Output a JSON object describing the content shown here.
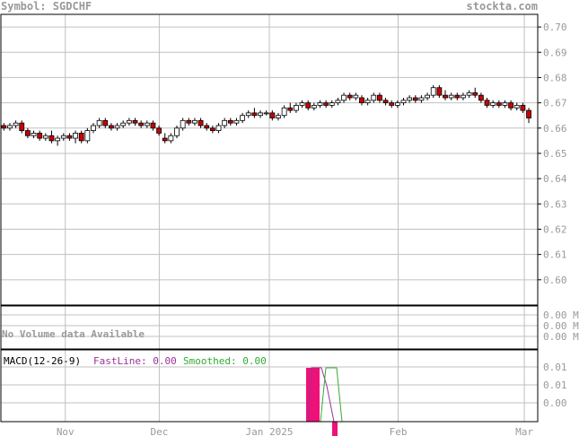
{
  "header": {
    "symbol_text": "Symbol: SGDCHF",
    "site": "stockta.com"
  },
  "colors": {
    "grid": "#c0c0c0",
    "axis": "#000000",
    "up": "#ffffff",
    "down": "#cc0000",
    "header_text": "#999999",
    "macd_bar": "#ee1177",
    "fast": "#993399",
    "smooth": "#33aa33",
    "tick_text": "#999999",
    "novol_text": "#999999"
  },
  "chart_data": [
    {
      "type": "candlestick",
      "name": "price",
      "ylim": [
        0.59,
        0.705
      ],
      "yticks": [
        "0.70",
        "0.69",
        "0.68",
        "0.67",
        "0.66",
        "0.65",
        "0.64",
        "0.63",
        "0.62",
        "0.61",
        "0.60"
      ],
      "ytick_values": [
        0.7,
        0.69,
        0.68,
        0.67,
        0.66,
        0.65,
        0.64,
        0.63,
        0.62,
        0.61,
        0.6
      ],
      "grid": true,
      "ohlc": [
        [
          0.661,
          0.662,
          0.659,
          0.66
        ],
        [
          0.66,
          0.662,
          0.659,
          0.661
        ],
        [
          0.661,
          0.663,
          0.66,
          0.662
        ],
        [
          0.662,
          0.663,
          0.658,
          0.659
        ],
        [
          0.659,
          0.66,
          0.656,
          0.657
        ],
        [
          0.657,
          0.659,
          0.656,
          0.658
        ],
        [
          0.658,
          0.659,
          0.655,
          0.656
        ],
        [
          0.656,
          0.658,
          0.655,
          0.657
        ],
        [
          0.657,
          0.659,
          0.654,
          0.655
        ],
        [
          0.655,
          0.657,
          0.653,
          0.656
        ],
        [
          0.656,
          0.658,
          0.655,
          0.657
        ],
        [
          0.657,
          0.658,
          0.655,
          0.656
        ],
        [
          0.656,
          0.659,
          0.654,
          0.658
        ],
        [
          0.658,
          0.659,
          0.654,
          0.655
        ],
        [
          0.655,
          0.66,
          0.654,
          0.659
        ],
        [
          0.659,
          0.662,
          0.658,
          0.661
        ],
        [
          0.661,
          0.664,
          0.66,
          0.663
        ],
        [
          0.663,
          0.664,
          0.66,
          0.661
        ],
        [
          0.661,
          0.662,
          0.659,
          0.66
        ],
        [
          0.66,
          0.662,
          0.659,
          0.661
        ],
        [
          0.661,
          0.663,
          0.66,
          0.662
        ],
        [
          0.662,
          0.664,
          0.661,
          0.663
        ],
        [
          0.663,
          0.664,
          0.661,
          0.662
        ],
        [
          0.662,
          0.663,
          0.66,
          0.661
        ],
        [
          0.661,
          0.663,
          0.66,
          0.662
        ],
        [
          0.662,
          0.663,
          0.659,
          0.66
        ],
        [
          0.66,
          0.661,
          0.657,
          0.658
        ],
        [
          0.656,
          0.658,
          0.654,
          0.655
        ],
        [
          0.655,
          0.658,
          0.654,
          0.657
        ],
        [
          0.657,
          0.661,
          0.656,
          0.66
        ],
        [
          0.66,
          0.664,
          0.659,
          0.663
        ],
        [
          0.663,
          0.664,
          0.661,
          0.662
        ],
        [
          0.662,
          0.664,
          0.661,
          0.663
        ],
        [
          0.663,
          0.664,
          0.66,
          0.661
        ],
        [
          0.661,
          0.662,
          0.659,
          0.66
        ],
        [
          0.66,
          0.661,
          0.658,
          0.659
        ],
        [
          0.659,
          0.662,
          0.658,
          0.661
        ],
        [
          0.661,
          0.664,
          0.66,
          0.663
        ],
        [
          0.663,
          0.664,
          0.661,
          0.662
        ],
        [
          0.662,
          0.664,
          0.661,
          0.663
        ],
        [
          0.663,
          0.666,
          0.662,
          0.665
        ],
        [
          0.665,
          0.667,
          0.664,
          0.666
        ],
        [
          0.666,
          0.668,
          0.664,
          0.665
        ],
        [
          0.665,
          0.667,
          0.664,
          0.666
        ],
        [
          0.666,
          0.667,
          0.665,
          0.666
        ],
        [
          0.666,
          0.667,
          0.663,
          0.664
        ],
        [
          0.664,
          0.666,
          0.663,
          0.665
        ],
        [
          0.665,
          0.669,
          0.664,
          0.668
        ],
        [
          0.668,
          0.67,
          0.666,
          0.667
        ],
        [
          0.667,
          0.67,
          0.666,
          0.669
        ],
        [
          0.669,
          0.671,
          0.668,
          0.67
        ],
        [
          0.67,
          0.671,
          0.667,
          0.668
        ],
        [
          0.668,
          0.67,
          0.667,
          0.669
        ],
        [
          0.669,
          0.671,
          0.668,
          0.67
        ],
        [
          0.67,
          0.671,
          0.668,
          0.669
        ],
        [
          0.669,
          0.671,
          0.668,
          0.67
        ],
        [
          0.67,
          0.672,
          0.669,
          0.671
        ],
        [
          0.671,
          0.674,
          0.67,
          0.673
        ],
        [
          0.673,
          0.674,
          0.671,
          0.672
        ],
        [
          0.672,
          0.674,
          0.671,
          0.673
        ],
        [
          0.672,
          0.673,
          0.669,
          0.67
        ],
        [
          0.67,
          0.672,
          0.669,
          0.671
        ],
        [
          0.671,
          0.674,
          0.67,
          0.673
        ],
        [
          0.673,
          0.674,
          0.67,
          0.671
        ],
        [
          0.671,
          0.672,
          0.669,
          0.67
        ],
        [
          0.67,
          0.671,
          0.668,
          0.669
        ],
        [
          0.669,
          0.671,
          0.668,
          0.67
        ],
        [
          0.67,
          0.672,
          0.669,
          0.671
        ],
        [
          0.671,
          0.673,
          0.67,
          0.672
        ],
        [
          0.672,
          0.673,
          0.67,
          0.671
        ],
        [
          0.671,
          0.673,
          0.67,
          0.672
        ],
        [
          0.672,
          0.674,
          0.671,
          0.673
        ],
        [
          0.673,
          0.677,
          0.672,
          0.676
        ],
        [
          0.676,
          0.677,
          0.672,
          0.673
        ],
        [
          0.673,
          0.675,
          0.671,
          0.672
        ],
        [
          0.672,
          0.674,
          0.671,
          0.673
        ],
        [
          0.673,
          0.674,
          0.671,
          0.672
        ],
        [
          0.672,
          0.674,
          0.671,
          0.673
        ],
        [
          0.673,
          0.675,
          0.672,
          0.674
        ],
        [
          0.674,
          0.676,
          0.672,
          0.673
        ],
        [
          0.673,
          0.674,
          0.67,
          0.671
        ],
        [
          0.671,
          0.672,
          0.668,
          0.669
        ],
        [
          0.669,
          0.671,
          0.668,
          0.67
        ],
        [
          0.67,
          0.671,
          0.668,
          0.669
        ],
        [
          0.669,
          0.671,
          0.668,
          0.67
        ],
        [
          0.67,
          0.671,
          0.667,
          0.668
        ],
        [
          0.668,
          0.67,
          0.667,
          0.669
        ],
        [
          0.669,
          0.67,
          0.666,
          0.667
        ],
        [
          0.667,
          0.668,
          0.662,
          0.664
        ]
      ]
    },
    {
      "type": "bar",
      "name": "volume",
      "ylim": [
        0,
        1
      ],
      "yticks": [
        "0.00 M",
        "0.00 M",
        "0.00 M"
      ],
      "message": "No Volume data Available"
    },
    {
      "type": "line",
      "name": "macd",
      "label": "MACD(12-26-9)",
      "fast_label": "FastLine: 0.00",
      "smooth_label": "Smoothed: 0.00",
      "yticks": [
        "0.01",
        "0.01",
        "0.00",
        "0.00"
      ],
      "ylim": [
        -0.015,
        0.015
      ],
      "bars": [
        {
          "x0": 0.762,
          "x1": 0.791,
          "v": 0.01
        },
        {
          "x0": 0.825,
          "x1": 0.834,
          "v": -0.02
        }
      ],
      "fast": [
        [
          0.762,
          -0.012
        ],
        [
          0.766,
          0.01
        ],
        [
          0.788,
          0.01
        ],
        [
          0.796,
          0.009
        ],
        [
          0.806,
          -0.012
        ]
      ],
      "smooth": [
        [
          0.79,
          -0.012
        ],
        [
          0.806,
          0.01
        ],
        [
          0.836,
          0.01
        ],
        [
          0.848,
          -0.012
        ]
      ]
    }
  ],
  "xaxis": {
    "labels": [
      "Nov",
      "Dec",
      "Jan 2025",
      "Feb",
      "Mar"
    ],
    "positions": [
      0.12,
      0.295,
      0.5,
      0.74,
      0.975
    ]
  }
}
